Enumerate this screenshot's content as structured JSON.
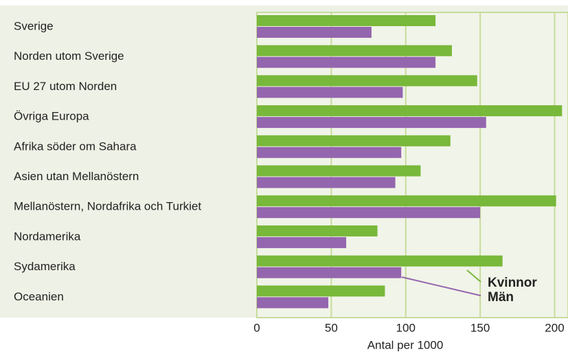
{
  "chart_data": {
    "type": "barh",
    "xlabel": "Antal per 1000",
    "categories": [
      "Sverige",
      "Norden utom Sverige",
      "EU 27 utom Norden",
      "Övriga Europa",
      "Afrika söder om Sahara",
      "Asien utan Mellanöstern",
      "Mellanöstern, Nordafrika och Turkiet",
      "Nordamerika",
      "Sydamerika",
      "Oceanien"
    ],
    "series": [
      {
        "name": "Kvinnor",
        "color": "#78b83a",
        "values": [
          120,
          131,
          148,
          205,
          130,
          110,
          201,
          81,
          165,
          86
        ]
      },
      {
        "name": "Män",
        "color": "#9466ae",
        "values": [
          77,
          120,
          98,
          154,
          97,
          93,
          150,
          60,
          97,
          48
        ]
      }
    ],
    "xlim": [
      0,
      209
    ],
    "xticks": [
      0,
      50,
      100,
      150,
      200
    ],
    "grid": true,
    "legend": "bottom right"
  }
}
